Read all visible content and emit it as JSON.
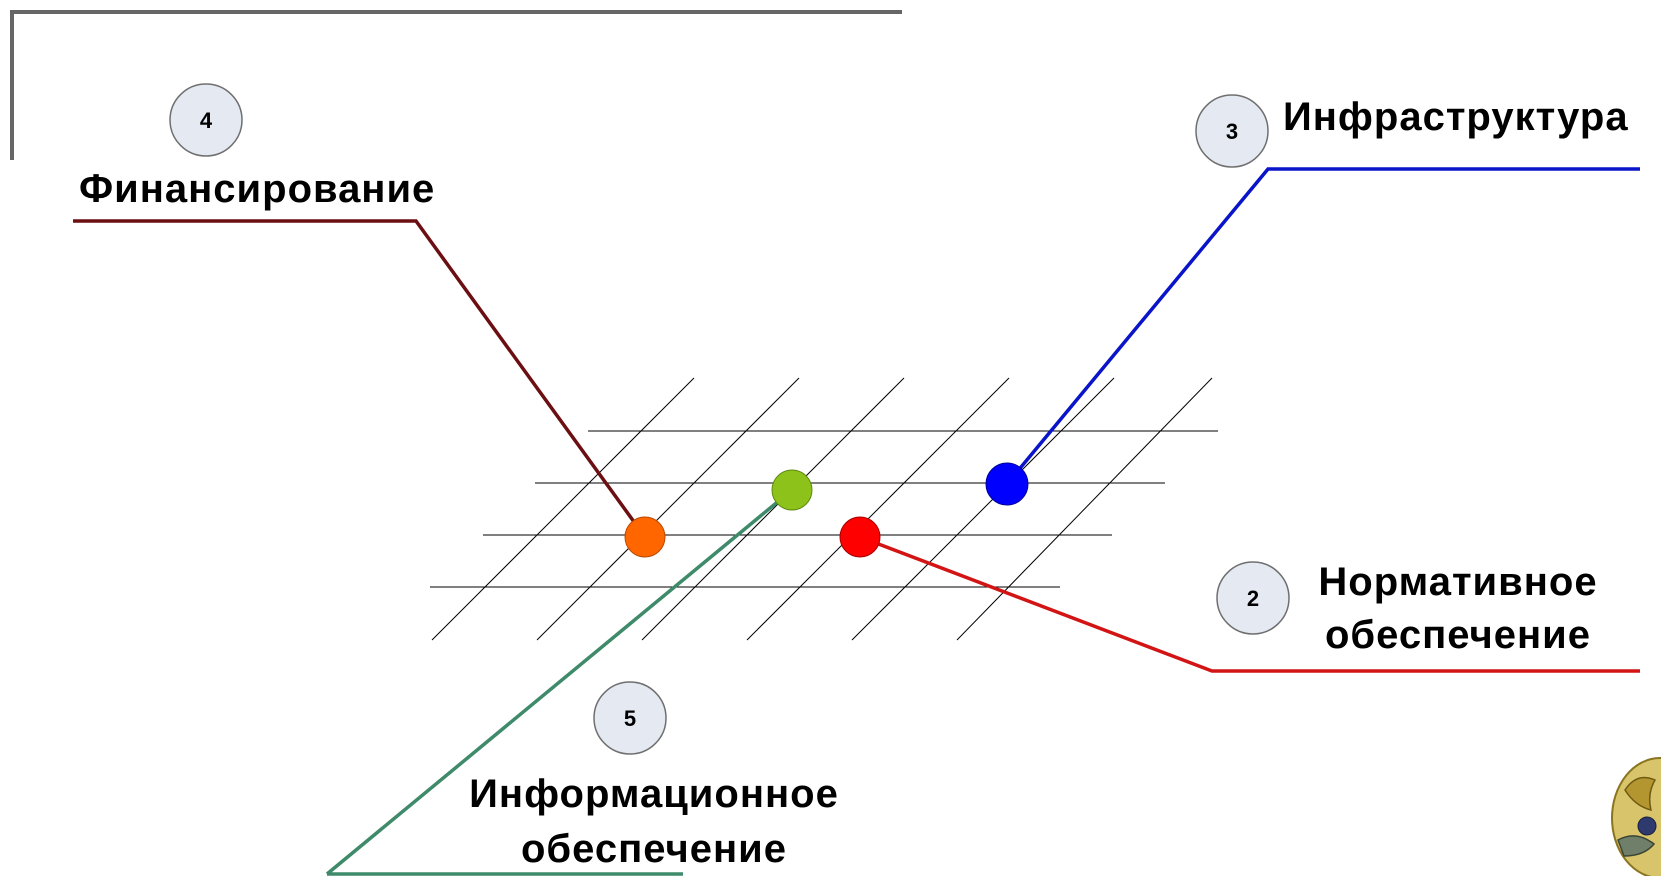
{
  "items": {
    "financing": {
      "number": "4",
      "label": "Финансирование",
      "color": "#6b0f12",
      "dot_color": "#ff6600"
    },
    "infrastructure": {
      "number": "3",
      "label": "Инфраструктура",
      "color": "#0a14c8",
      "dot_color": "#0000ff"
    },
    "normative": {
      "number": "2",
      "label_line1": "Нормативное",
      "label_line2": "обеспечение",
      "color": "#d21414",
      "dot_color": "#ff0000"
    },
    "information": {
      "number": "5",
      "label_line1": "Информационное",
      "label_line2": "обеспечение",
      "color": "#3e8a6a",
      "dot_color": "#8cc21a"
    }
  },
  "colors": {
    "frame": "#666666",
    "grid": "#000000",
    "badge_fill": "#e4e9f2"
  },
  "icons": {
    "emblem": "coat-of-arms-emblem-icon"
  }
}
